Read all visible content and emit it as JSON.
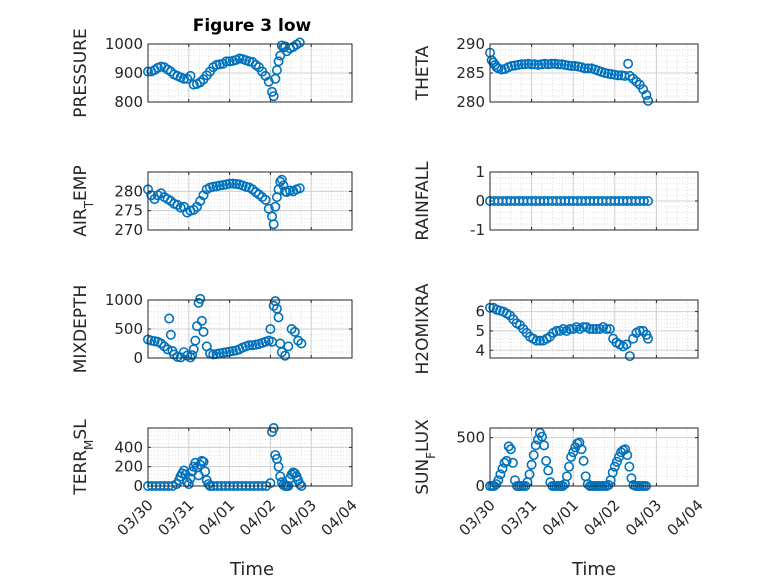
{
  "figure": {
    "title": "Figure 3 low",
    "marker_color": "#0072bd",
    "x_tick_labels": [
      "03/30",
      "03/31",
      "04/01",
      "04/02",
      "04/03",
      "04/04"
    ],
    "x_label": "Time"
  },
  "chart_data": [
    {
      "type": "scatter",
      "ylabel": "PRESSURE",
      "ylim": [
        800,
        1000
      ],
      "yticks": [
        800,
        900,
        1000
      ],
      "xlim": [
        0,
        5
      ],
      "grid": true,
      "x": [
        0,
        0.08,
        0.16,
        0.24,
        0.32,
        0.4,
        0.48,
        0.56,
        0.64,
        0.72,
        0.8,
        0.88,
        0.96,
        1.04,
        1.12,
        1.2,
        1.28,
        1.36,
        1.44,
        1.52,
        1.6,
        1.68,
        1.76,
        1.84,
        1.92,
        2.0,
        2.08,
        2.16,
        2.24,
        2.32,
        2.4,
        2.48,
        2.56,
        2.64,
        2.72,
        2.8,
        2.88,
        2.96,
        3.04,
        3.08,
        3.12,
        3.16,
        3.2,
        3.24,
        3.28,
        3.32,
        3.36,
        3.4,
        3.48,
        3.56,
        3.64,
        3.72
      ],
      "y": [
        905,
        905,
        910,
        918,
        922,
        920,
        912,
        905,
        895,
        890,
        885,
        880,
        880,
        890,
        860,
        862,
        868,
        878,
        892,
        905,
        920,
        928,
        930,
        932,
        940,
        940,
        942,
        945,
        950,
        948,
        944,
        940,
        938,
        928,
        920,
        905,
        890,
        870,
        835,
        820,
        880,
        910,
        940,
        960,
        995,
        988,
        992,
        975,
        985,
        990,
        998,
        1005
      ]
    },
    {
      "type": "scatter",
      "ylabel": "THETA",
      "ylim": [
        280,
        290
      ],
      "yticks": [
        280,
        285,
        290
      ],
      "xlim": [
        0,
        5
      ],
      "grid": true,
      "x": [
        0,
        0.04,
        0.08,
        0.12,
        0.16,
        0.2,
        0.28,
        0.36,
        0.44,
        0.52,
        0.6,
        0.68,
        0.76,
        0.84,
        0.92,
        1.0,
        1.08,
        1.16,
        1.24,
        1.32,
        1.4,
        1.48,
        1.56,
        1.64,
        1.72,
        1.8,
        1.88,
        1.96,
        2.04,
        2.12,
        2.2,
        2.28,
        2.36,
        2.44,
        2.52,
        2.6,
        2.68,
        2.76,
        2.84,
        2.92,
        3.0,
        3.08,
        3.16,
        3.24,
        3.32,
        3.36,
        3.44,
        3.52,
        3.6,
        3.68,
        3.76,
        3.8
      ],
      "y": [
        288.5,
        287.2,
        286.8,
        286.4,
        286.0,
        285.8,
        285.6,
        285.7,
        286.0,
        286.2,
        286.3,
        286.4,
        286.5,
        286.5,
        286.6,
        286.5,
        286.5,
        286.4,
        286.5,
        286.6,
        286.5,
        286.6,
        286.6,
        286.5,
        286.5,
        286.4,
        286.3,
        286.2,
        286.2,
        286.1,
        286.0,
        285.8,
        285.8,
        285.8,
        285.6,
        285.4,
        285.2,
        285.0,
        284.9,
        284.8,
        284.7,
        284.6,
        284.6,
        284.5,
        286.6,
        284.5,
        284.0,
        283.5,
        283.0,
        282.2,
        281.2,
        280.2
      ]
    },
    {
      "type": "scatter",
      "ylabel": "AIR_TEMP",
      "ylim": [
        270,
        285
      ],
      "yticks": [
        270,
        275,
        280
      ],
      "xlim": [
        0,
        5
      ],
      "grid": true,
      "x": [
        0,
        0.08,
        0.16,
        0.24,
        0.32,
        0.4,
        0.48,
        0.56,
        0.64,
        0.72,
        0.8,
        0.88,
        0.96,
        1.04,
        1.12,
        1.2,
        1.28,
        1.36,
        1.44,
        1.52,
        1.6,
        1.68,
        1.76,
        1.84,
        1.92,
        2.0,
        2.08,
        2.16,
        2.24,
        2.32,
        2.4,
        2.48,
        2.56,
        2.64,
        2.72,
        2.8,
        2.88,
        2.96,
        3.04,
        3.08,
        3.12,
        3.16,
        3.2,
        3.24,
        3.28,
        3.32,
        3.36,
        3.4,
        3.48,
        3.56,
        3.64,
        3.72
      ],
      "y": [
        280.5,
        279.0,
        278.0,
        279.0,
        279.5,
        278.5,
        278.0,
        277.5,
        276.8,
        276.5,
        275.8,
        276.0,
        274.5,
        275.0,
        275.2,
        276.0,
        277.5,
        279.0,
        280.5,
        281.0,
        281.2,
        281.3,
        281.5,
        281.6,
        281.8,
        282.0,
        282.0,
        281.9,
        281.8,
        281.5,
        281.2,
        281.0,
        280.5,
        279.8,
        279.2,
        278.5,
        277.8,
        275.5,
        273.5,
        271.5,
        276.0,
        278.5,
        280.5,
        282.5,
        283.0,
        281.5,
        280.0,
        279.8,
        280.2,
        280.0,
        280.5,
        280.8
      ]
    },
    {
      "type": "scatter",
      "ylabel": "RAINFALL",
      "ylim": [
        -1,
        1
      ],
      "yticks": [
        -1,
        0,
        1
      ],
      "xlim": [
        0,
        5
      ],
      "grid": true,
      "x": [
        0,
        0.1,
        0.2,
        0.3,
        0.4,
        0.5,
        0.6,
        0.7,
        0.8,
        0.9,
        1.0,
        1.1,
        1.2,
        1.3,
        1.4,
        1.5,
        1.6,
        1.7,
        1.8,
        1.9,
        2.0,
        2.1,
        2.2,
        2.3,
        2.4,
        2.5,
        2.6,
        2.7,
        2.8,
        2.9,
        3.0,
        3.1,
        3.2,
        3.3,
        3.4,
        3.5,
        3.6,
        3.7,
        3.8
      ],
      "y": [
        0,
        0,
        0,
        0,
        0,
        0,
        0,
        0,
        0,
        0,
        0,
        0,
        0,
        0,
        0,
        0,
        0,
        0,
        0,
        0,
        0,
        0,
        0,
        0,
        0,
        0,
        0,
        0,
        0,
        0,
        0,
        0,
        0,
        0,
        0,
        0,
        0,
        0,
        0
      ]
    },
    {
      "type": "scatter",
      "ylabel": "MIXDEPTH",
      "ylim": [
        0,
        1000
      ],
      "yticks": [
        0,
        500,
        1000
      ],
      "xlim": [
        0,
        5
      ],
      "grid": true,
      "x": [
        0,
        0.08,
        0.16,
        0.24,
        0.32,
        0.4,
        0.48,
        0.52,
        0.56,
        0.6,
        0.64,
        0.72,
        0.8,
        0.88,
        0.96,
        1.04,
        1.08,
        1.12,
        1.16,
        1.2,
        1.24,
        1.28,
        1.32,
        1.36,
        1.44,
        1.52,
        1.6,
        1.68,
        1.76,
        1.84,
        1.92,
        2.0,
        2.08,
        2.16,
        2.24,
        2.32,
        2.4,
        2.48,
        2.56,
        2.64,
        2.72,
        2.8,
        2.88,
        2.96,
        3.0,
        3.04,
        3.08,
        3.12,
        3.16,
        3.2,
        3.24,
        3.28,
        3.36,
        3.44,
        3.52,
        3.6,
        3.68,
        3.76
      ],
      "y": [
        320,
        300,
        290,
        280,
        250,
        200,
        150,
        680,
        400,
        120,
        60,
        20,
        10,
        100,
        40,
        10,
        50,
        150,
        300,
        550,
        950,
        1020,
        640,
        450,
        200,
        80,
        60,
        70,
        80,
        90,
        100,
        110,
        120,
        130,
        150,
        180,
        200,
        220,
        220,
        230,
        240,
        260,
        280,
        300,
        500,
        280,
        900,
        980,
        850,
        700,
        250,
        100,
        40,
        200,
        500,
        450,
        300,
        250
      ]
    },
    {
      "type": "scatter",
      "ylabel": "H2OMIXRA",
      "ylim": [
        3.6,
        6.6
      ],
      "yticks": [
        4,
        5,
        6
      ],
      "xlim": [
        0,
        5
      ],
      "grid": true,
      "x": [
        0,
        0.08,
        0.16,
        0.24,
        0.32,
        0.4,
        0.48,
        0.56,
        0.64,
        0.72,
        0.8,
        0.88,
        0.96,
        1.04,
        1.12,
        1.2,
        1.28,
        1.36,
        1.44,
        1.52,
        1.6,
        1.68,
        1.76,
        1.84,
        1.92,
        2.0,
        2.08,
        2.16,
        2.24,
        2.32,
        2.4,
        2.48,
        2.56,
        2.64,
        2.72,
        2.8,
        2.88,
        2.96,
        3.04,
        3.12,
        3.2,
        3.28,
        3.36,
        3.44,
        3.52,
        3.6,
        3.68,
        3.76,
        3.8
      ],
      "y": [
        6.2,
        6.2,
        6.1,
        6.05,
        6.0,
        5.9,
        5.8,
        5.6,
        5.4,
        5.3,
        5.1,
        4.9,
        4.7,
        4.6,
        4.5,
        4.5,
        4.5,
        4.6,
        4.7,
        4.9,
        5.0,
        5.0,
        5.1,
        5.0,
        5.1,
        5.1,
        5.2,
        5.1,
        5.2,
        5.2,
        5.1,
        5.1,
        5.1,
        5.1,
        5.2,
        5.1,
        5.1,
        4.6,
        4.4,
        4.3,
        4.2,
        4.3,
        3.7,
        4.6,
        4.9,
        5.0,
        5.0,
        4.8,
        4.6
      ]
    },
    {
      "type": "scatter",
      "ylabel": "TERR_MSL",
      "ylim": [
        0,
        600
      ],
      "yticks": [
        0,
        200,
        400
      ],
      "xlim": [
        0,
        5
      ],
      "grid": true,
      "x": [
        0,
        0.1,
        0.2,
        0.3,
        0.4,
        0.5,
        0.6,
        0.7,
        0.76,
        0.8,
        0.84,
        0.88,
        0.92,
        0.96,
        1.0,
        1.04,
        1.08,
        1.12,
        1.16,
        1.2,
        1.24,
        1.28,
        1.32,
        1.36,
        1.4,
        1.44,
        1.48,
        1.52,
        1.6,
        1.7,
        1.8,
        1.9,
        2.0,
        2.1,
        2.2,
        2.3,
        2.4,
        2.5,
        2.6,
        2.7,
        2.8,
        2.9,
        3.0,
        3.04,
        3.08,
        3.12,
        3.16,
        3.2,
        3.24,
        3.28,
        3.32,
        3.36,
        3.4,
        3.44,
        3.48,
        3.52,
        3.56,
        3.6,
        3.64,
        3.68,
        3.72,
        3.76
      ],
      "y": [
        0,
        0,
        0,
        0,
        0,
        0,
        0,
        20,
        60,
        100,
        130,
        160,
        120,
        40,
        20,
        80,
        150,
        200,
        240,
        190,
        110,
        220,
        260,
        250,
        150,
        60,
        20,
        0,
        0,
        0,
        0,
        0,
        0,
        0,
        0,
        0,
        0,
        0,
        0,
        0,
        0,
        0,
        30,
        560,
        600,
        320,
        280,
        200,
        100,
        40,
        10,
        0,
        0,
        0,
        80,
        120,
        140,
        130,
        100,
        60,
        20,
        0
      ]
    },
    {
      "type": "scatter",
      "ylabel": "SUN_FLUX",
      "ylim": [
        0,
        600
      ],
      "yticks": [
        0,
        500
      ],
      "xlim": [
        0,
        5
      ],
      "grid": true,
      "x": [
        0,
        0.05,
        0.1,
        0.15,
        0.2,
        0.25,
        0.3,
        0.35,
        0.4,
        0.45,
        0.5,
        0.55,
        0.6,
        0.65,
        0.7,
        0.75,
        0.8,
        0.85,
        0.9,
        0.95,
        1.0,
        1.05,
        1.1,
        1.15,
        1.2,
        1.25,
        1.3,
        1.35,
        1.4,
        1.45,
        1.5,
        1.55,
        1.6,
        1.65,
        1.7,
        1.75,
        1.8,
        1.85,
        1.9,
        1.95,
        2.0,
        2.05,
        2.1,
        2.15,
        2.2,
        2.25,
        2.3,
        2.35,
        2.4,
        2.45,
        2.5,
        2.55,
        2.6,
        2.65,
        2.7,
        2.75,
        2.8,
        2.85,
        2.9,
        2.95,
        3.0,
        3.05,
        3.1,
        3.15,
        3.2,
        3.25,
        3.3,
        3.35,
        3.4,
        3.45,
        3.5,
        3.55,
        3.6,
        3.65,
        3.7,
        3.75
      ],
      "y": [
        0,
        0,
        0,
        20,
        60,
        120,
        180,
        240,
        260,
        410,
        380,
        240,
        60,
        0,
        0,
        0,
        0,
        0,
        40,
        120,
        220,
        320,
        420,
        480,
        550,
        510,
        420,
        260,
        160,
        40,
        0,
        0,
        0,
        0,
        0,
        0,
        20,
        100,
        200,
        300,
        350,
        400,
        440,
        450,
        380,
        260,
        100,
        20,
        0,
        0,
        0,
        0,
        0,
        0,
        0,
        0,
        0,
        10,
        60,
        140,
        200,
        250,
        300,
        350,
        370,
        380,
        320,
        200,
        80,
        10,
        0,
        0,
        0,
        0,
        0,
        0
      ]
    }
  ]
}
